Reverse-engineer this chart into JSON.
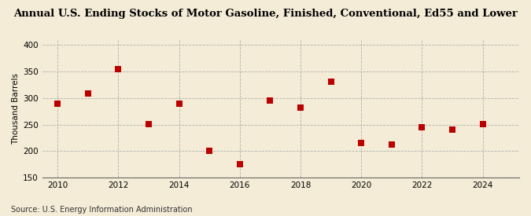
{
  "title": "Annual U.S. Ending Stocks of Motor Gasoline, Finished, Conventional, Ed55 and Lower",
  "ylabel": "Thousand Barrels",
  "source": "Source: U.S. Energy Information Administration",
  "years": [
    2010,
    2011,
    2012,
    2013,
    2014,
    2015,
    2016,
    2017,
    2018,
    2019,
    2020,
    2021,
    2022,
    2023,
    2024
  ],
  "values": [
    290,
    308,
    355,
    251,
    290,
    200,
    175,
    296,
    282,
    331,
    215,
    212,
    245,
    241,
    251
  ],
  "xlim": [
    2009.5,
    2025.2
  ],
  "ylim": [
    150,
    410
  ],
  "yticks": [
    150,
    200,
    250,
    300,
    350,
    400
  ],
  "xticks": [
    2010,
    2012,
    2014,
    2016,
    2018,
    2020,
    2022,
    2024
  ],
  "marker_color": "#bb0000",
  "marker_size": 28,
  "background_color": "#f5ecd7",
  "grid_color": "#b0b0b0",
  "title_fontsize": 9.5,
  "axis_fontsize": 7.5,
  "ylabel_fontsize": 7.5,
  "source_fontsize": 7.0
}
